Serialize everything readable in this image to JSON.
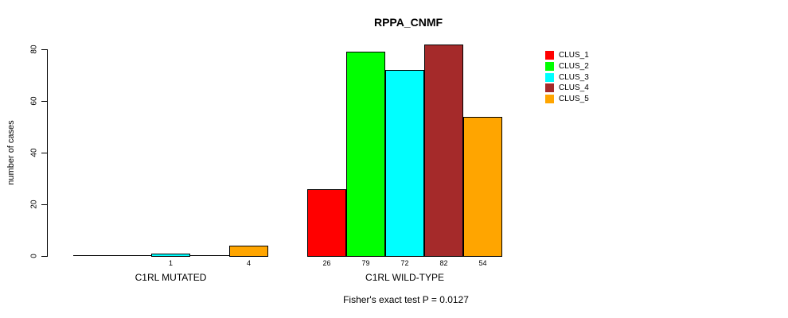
{
  "chart_data": {
    "type": "bar",
    "title": "RPPA_CNMF",
    "xlabel": "",
    "ylabel": "number of cases",
    "annotation": "Fisher's exact test P = 0.0127",
    "categories": [
      "C1RL MUTATED",
      "C1RL WILD-TYPE"
    ],
    "series": [
      {
        "name": "CLUS_1",
        "color": "#FF0000",
        "values": [
          0,
          26
        ]
      },
      {
        "name": "CLUS_2",
        "color": "#00FF00",
        "values": [
          0,
          79
        ]
      },
      {
        "name": "CLUS_3",
        "color": "#00FFFF",
        "values": [
          1,
          72
        ]
      },
      {
        "name": "CLUS_4",
        "color": "#A52A2A",
        "values": [
          0,
          82
        ]
      },
      {
        "name": "CLUS_5",
        "color": "#FFA500",
        "values": [
          4,
          54
        ]
      }
    ],
    "ylim": [
      0,
      80
    ],
    "yticks": [
      0,
      20,
      40,
      60,
      80
    ],
    "value_labels": "bar values printed below each nonzero bar",
    "legend_position": "right",
    "grid": false,
    "bar_border_color": "#000000",
    "background_color": "#FFFFFF"
  }
}
